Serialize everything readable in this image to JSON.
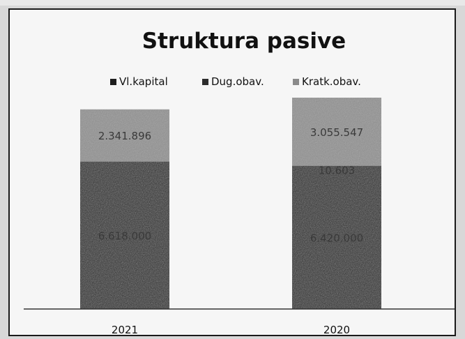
{
  "chart_data": {
    "type": "bar",
    "stacked": true,
    "title": "Struktura pasive",
    "categories": [
      "2021",
      "2020"
    ],
    "series": [
      {
        "name": "Vl.kapital",
        "values": [
          6618000,
          6420000
        ],
        "color": "#1e1e1e",
        "data_labels": [
          "6.618.000",
          "6.420.000"
        ]
      },
      {
        "name": "Dug.obav.",
        "values": [
          0,
          10603
        ],
        "color": "#2c2c2c",
        "data_labels": [
          "",
          "10.603"
        ]
      },
      {
        "name": "Kratk.obav.",
        "values": [
          2341896,
          3055547
        ],
        "color": "#8a8a8a",
        "data_labels": [
          "2.341.896",
          "3.055.547"
        ]
      }
    ],
    "ylim": [
      0,
      9486150
    ],
    "legend": "top",
    "grid": false,
    "colors": {
      "background": "#f6f6f6",
      "frame": "#1a1a1a",
      "axis": "#333333"
    }
  }
}
